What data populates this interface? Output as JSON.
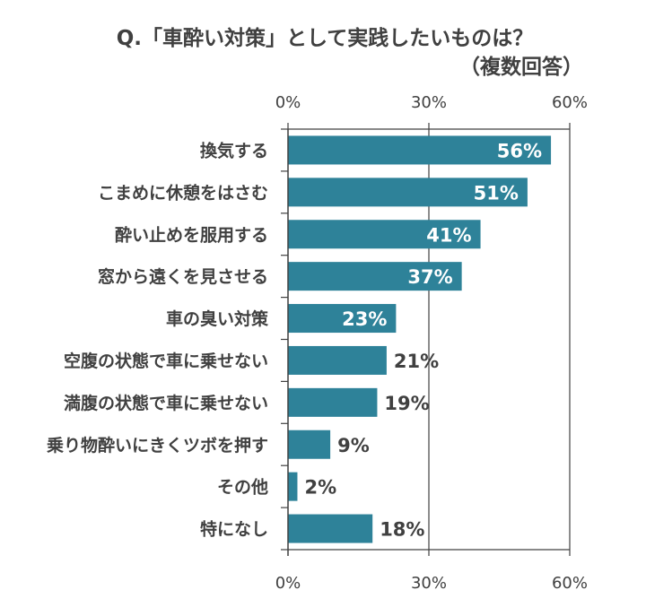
{
  "chart_data": {
    "type": "bar",
    "orientation": "horizontal",
    "title": "Q.「車酔い対策」として実践したいものは？",
    "subtitle": "（複数回答）",
    "categories": [
      "換気する",
      "こまめに休憩をはさむ",
      "酔い止めを服用する",
      "窓から遠くを見させる",
      "車の臭い対策",
      "空腹の状態で車に乗せない",
      "満腹の状態で車に乗せない",
      "乗り物酔いにきくツボを押す",
      "その他",
      "特になし"
    ],
    "values": [
      56,
      51,
      41,
      37,
      23,
      21,
      19,
      9,
      2,
      18
    ],
    "data_labels": [
      "56%",
      "51%",
      "41%",
      "37%",
      "23%",
      "21%",
      "19%",
      "9%",
      "2%",
      "18%"
    ],
    "xlim": [
      0,
      60
    ],
    "ticks": [
      0,
      30,
      60
    ],
    "tick_labels": [
      "0%",
      "30%",
      "60%"
    ],
    "axis_top_and_bottom": true,
    "grid": true,
    "bar_color": "#2e8299",
    "text_color": "#404040",
    "inside_label_color": "#ffffff"
  }
}
